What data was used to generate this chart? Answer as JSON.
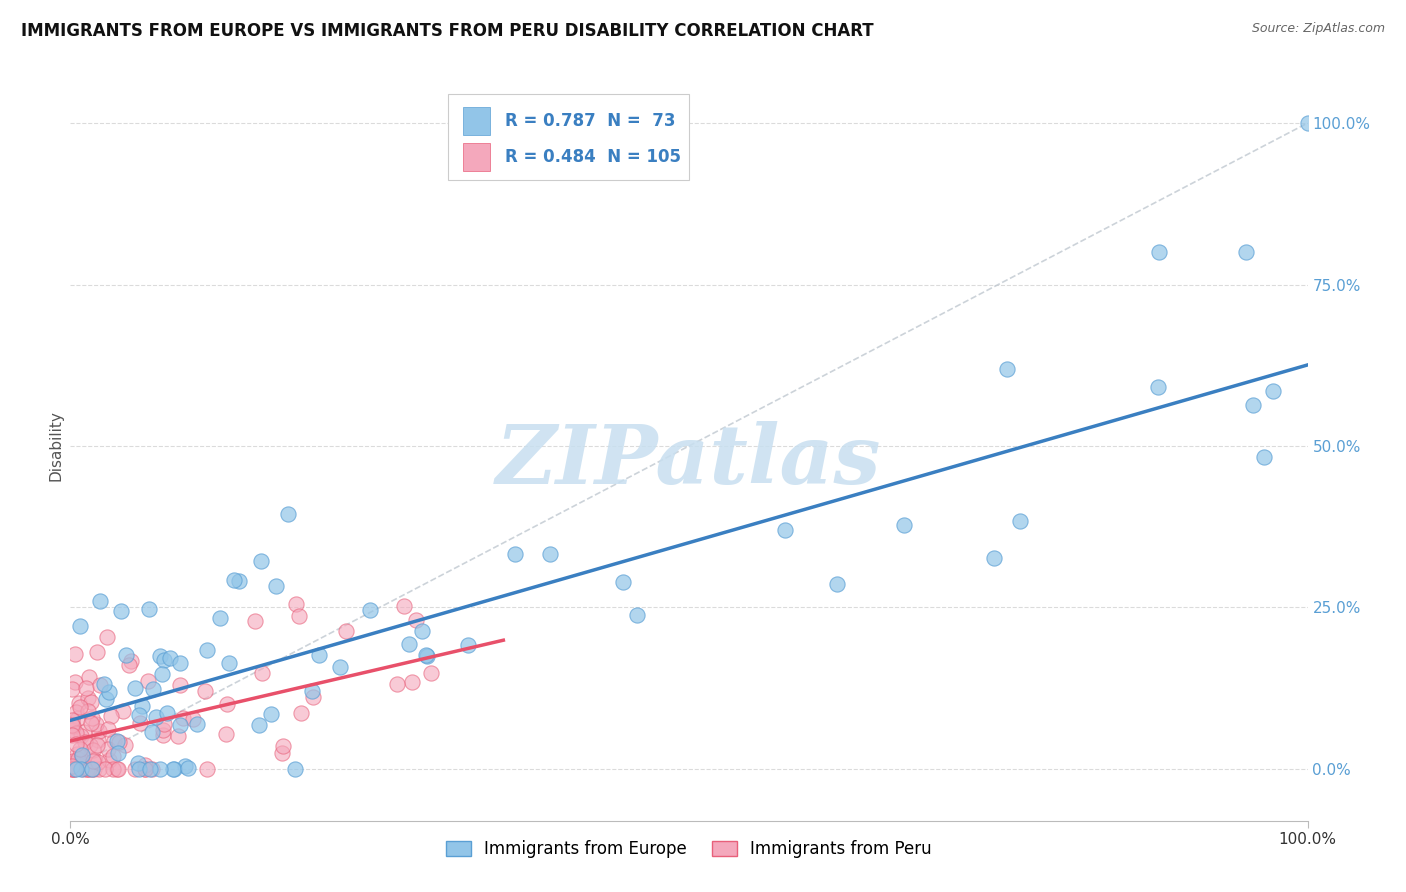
{
  "title": "IMMIGRANTS FROM EUROPE VS IMMIGRANTS FROM PERU DISABILITY CORRELATION CHART",
  "source": "Source: ZipAtlas.com",
  "ylabel": "Disability",
  "ytick_values": [
    0.0,
    25.0,
    50.0,
    75.0,
    100.0
  ],
  "series1_name": "Immigrants from Europe",
  "series1_color": "#92c5e8",
  "series1_edge_color": "#5a9fd4",
  "series1_line_color": "#3a7fc1",
  "series1_R": 0.787,
  "series1_N": 73,
  "series2_name": "Immigrants from Peru",
  "series2_color": "#f4a8bc",
  "series2_edge_color": "#e8607a",
  "series2_line_color": "#e8506a",
  "series2_R": 0.484,
  "series2_N": 105,
  "watermark_text": "ZIPatlas",
  "watermark_color": "#c8dff0",
  "background_color": "#ffffff",
  "grid_color": "#d8d8d8",
  "title_fontsize": 12,
  "right_tick_color": "#5a9fd4",
  "legend_text_color": "#3a7fc1",
  "legend_label_color": "#222222"
}
